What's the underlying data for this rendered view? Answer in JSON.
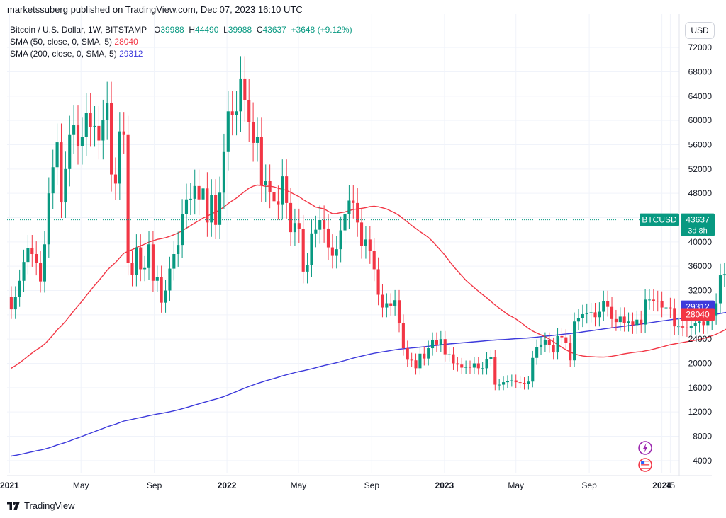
{
  "header": {
    "published_text": "marketssuberg published on TradingView.com, Dec 07, 2023 16:10 UTC"
  },
  "legend": {
    "symbol": "Bitcoin / U.S. Dollar, 1W, BITSTAMP",
    "o_key": "O",
    "o_val": "39988",
    "h_key": "H",
    "h_val": "44490",
    "l_key": "L",
    "l_val": "39988",
    "c_key": "C",
    "c_val": "43637",
    "change": "+3648 (+9.12%)",
    "sma50_label": "SMA (50, close, 0, SMA, 5)",
    "sma50_value": "28040",
    "sma200_label": "SMA (200, close, 0, SMA, 5)",
    "sma200_value": "29312"
  },
  "currency_button": "USD",
  "price_tag": {
    "label": "BTCUSD",
    "value": "43637",
    "countdown": "3d 8h"
  },
  "footer": {
    "brand": "TradingView"
  },
  "colors": {
    "up": "#089981",
    "down": "#f23645",
    "sma50": "#f23645",
    "sma200": "#3d3adb",
    "grid": "#f0f3fa",
    "price_line": "#089981"
  },
  "icons": {
    "flash": "lightning-icon",
    "flag": "us-flag-icon"
  },
  "chart_data": {
    "type": "candlestick",
    "title": "Bitcoin / U.S. Dollar, 1W, BITSTAMP",
    "xlabel": "",
    "ylabel": "",
    "ylim": [
      2000,
      74000
    ],
    "y_ticks": [
      4000,
      8000,
      12000,
      16000,
      20000,
      24000,
      28000,
      32000,
      36000,
      40000,
      44000,
      48000,
      52000,
      56000,
      60000,
      64000,
      68000,
      72000
    ],
    "x_ticks": [
      {
        "label": "2021",
        "date": "2021-01-01",
        "bold": true
      },
      {
        "label": "May",
        "date": "2021-05-01"
      },
      {
        "label": "Sep",
        "date": "2021-09-01"
      },
      {
        "label": "2022",
        "date": "2022-01-01",
        "bold": true
      },
      {
        "label": "May",
        "date": "2022-05-01"
      },
      {
        "label": "Sep",
        "date": "2022-09-01"
      },
      {
        "label": "2023",
        "date": "2023-01-01",
        "bold": true
      },
      {
        "label": "May",
        "date": "2023-05-01"
      },
      {
        "label": "Sep",
        "date": "2023-09-01"
      },
      {
        "label": "2024",
        "date": "2024-01-01",
        "bold": true
      },
      {
        "label": "15",
        "date": "2024-01-15"
      }
    ],
    "weekly_close": [
      28900,
      31000,
      33600,
      36700,
      39000,
      38000,
      36500,
      33500,
      39600,
      48000,
      52300,
      56400,
      46500,
      52000,
      57600,
      59200,
      55800,
      57300,
      61200,
      58900,
      59100,
      56700,
      60100,
      62900,
      51100,
      49600,
      58200,
      57600,
      36500,
      34600,
      39100,
      35500,
      35700,
      39600,
      33600,
      34200,
      30000,
      32000,
      35600,
      38000,
      39500,
      44600,
      47000,
      47100,
      49200,
      47000,
      48800,
      43200,
      47700,
      42800,
      48100,
      54800,
      61500,
      60900,
      61500,
      66900,
      63300,
      59700,
      56300,
      57300,
      49300,
      50000,
      48200,
      46700,
      46200,
      50800,
      46400,
      41600,
      43100,
      42100,
      35100,
      36200,
      41400,
      42000,
      43600,
      42200,
      39100,
      37700,
      38800,
      41900,
      44600,
      46800,
      46400,
      43200,
      39400,
      40400,
      38500,
      35500,
      31300,
      29200,
      29900,
      29500,
      30400,
      26600,
      22500,
      20600,
      20500,
      19200,
      21600,
      20800,
      22500,
      23800,
      23100,
      24000,
      21500,
      21500,
      20000,
      19800,
      19300,
      19400,
      19300,
      20000,
      19200,
      19200,
      20700,
      21100,
      16500,
      16500,
      16900,
      17100,
      17200,
      16900,
      16800,
      16600,
      17000,
      20900,
      22700,
      23100,
      23800,
      23000,
      21800,
      24500,
      24300,
      23400,
      20500,
      26900,
      27500,
      28100,
      28300,
      28400,
      27600,
      28500,
      30300,
      29300,
      27300,
      26800,
      27700,
      26700,
      26900,
      26300,
      27200,
      26400,
      30500,
      30500,
      30300,
      30200,
      29200,
      29200,
      29100,
      26100,
      26100,
      25900,
      25800,
      26200,
      26600,
      26900,
      26300,
      27000,
      27900,
      29900,
      34500,
      34700,
      36700,
      37300,
      37800,
      37200,
      38200,
      39988,
      43637
    ],
    "sma_50": {
      "name": "SMA (50, close, 0, SMA, 5)",
      "last": 28040
    },
    "sma_200": {
      "name": "SMA (200, close, 0, SMA, 5)",
      "last": 29312
    },
    "last_price": 43637
  }
}
